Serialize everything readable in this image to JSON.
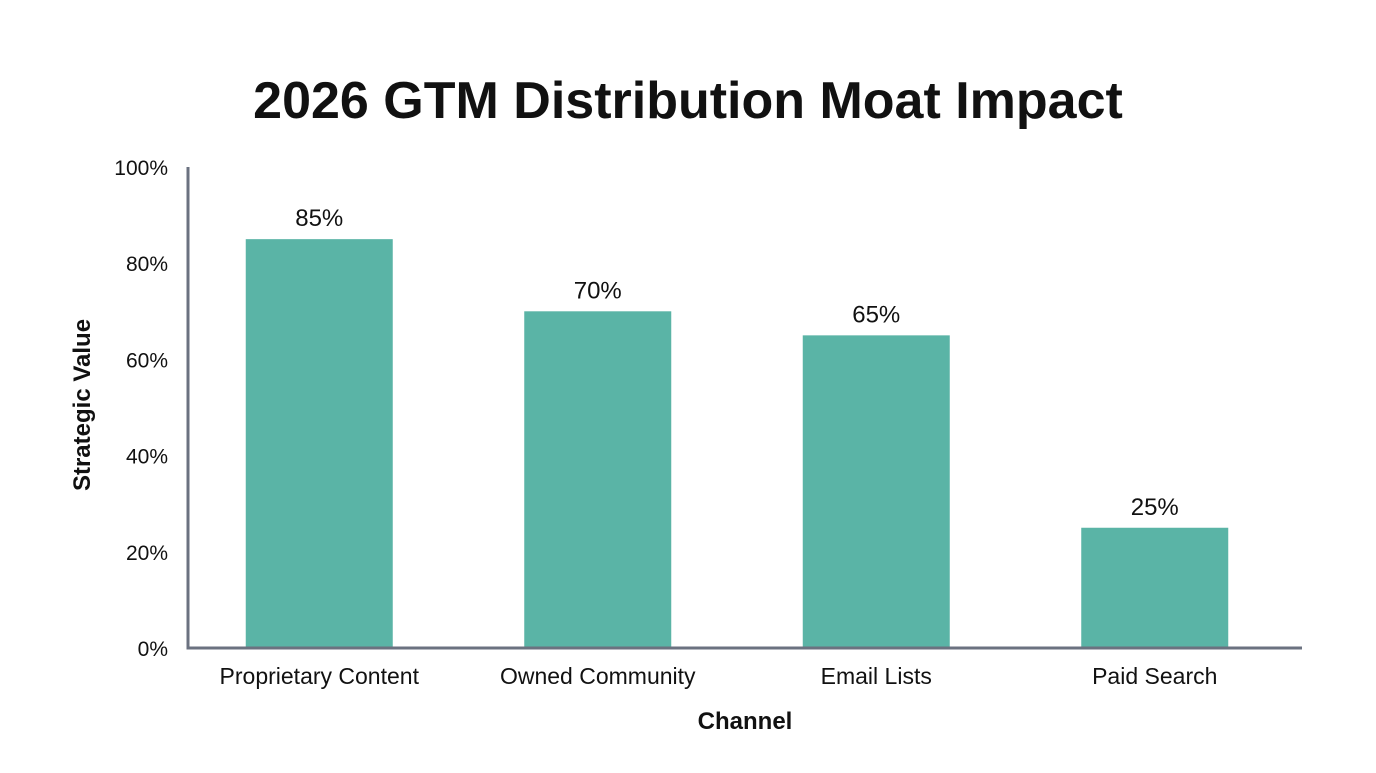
{
  "chart_data": {
    "type": "bar",
    "title": "2026 GTM Distribution Moat Impact",
    "xlabel": "Channel",
    "ylabel": "Strategic Value",
    "categories": [
      "Proprietary Content",
      "Owned Community",
      "Email Lists",
      "Paid Search"
    ],
    "values": [
      85,
      70,
      65,
      25
    ],
    "data_labels": [
      "85%",
      "70%",
      "65%",
      "25%"
    ],
    "ylim": [
      0,
      100
    ],
    "yticks": [
      0,
      20,
      40,
      60,
      80,
      100
    ],
    "ytick_labels": [
      "0%",
      "20%",
      "40%",
      "60%",
      "80%",
      "100%"
    ],
    "grid": false,
    "legend": "none",
    "colors": {
      "bar": "#5AB4A6",
      "axis": "#6B7280",
      "text": "#111111"
    }
  }
}
